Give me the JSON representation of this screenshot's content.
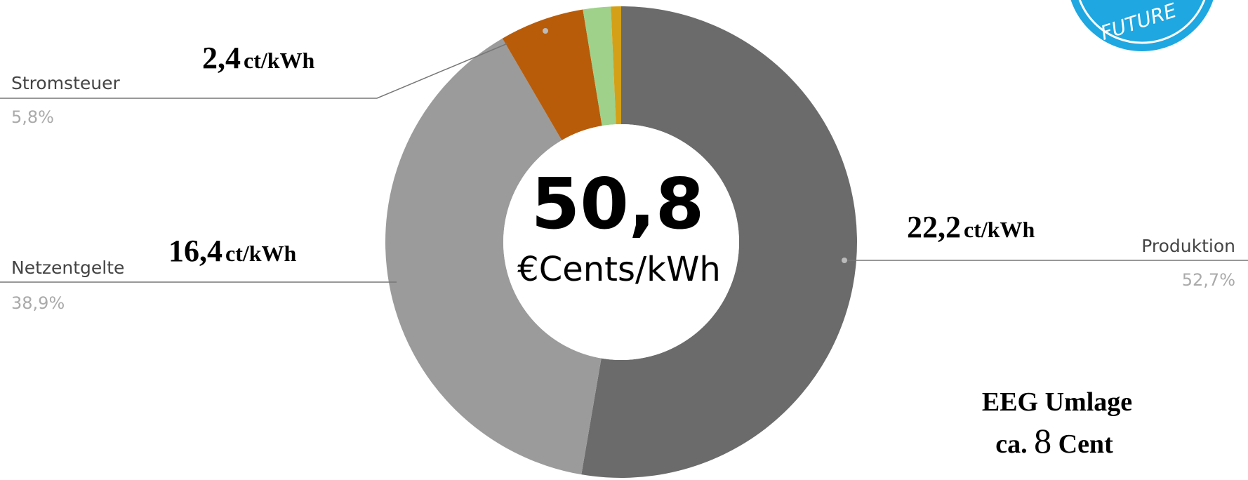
{
  "chart_data": {
    "type": "donut",
    "categories": [
      "Produktion",
      "Netzentgelte",
      "Stromsteuer",
      null,
      null
    ],
    "values": [
      52.7,
      38.9,
      5.8,
      1.9,
      0.7
    ],
    "value_labels": [
      "52,7%",
      "38,9%",
      "5,8%",
      null,
      null
    ],
    "colors": [
      "#6b6b6b",
      "#9b9b9b",
      "#b85c0a",
      "#9fd18a",
      "#d4a017"
    ],
    "center_value": "50,8",
    "center_unit": "€Cents/kWh",
    "annotations": [
      {
        "amount": "22,2",
        "unit": "ct/kWh"
      },
      {
        "amount": "16,4",
        "unit": "ct/kWh"
      },
      {
        "amount": "2,4",
        "unit": "ct/kWh"
      }
    ],
    "note": {
      "line1": "EEG Umlage",
      "prefix": "ca.",
      "amount": "8",
      "suffix": "Cent"
    },
    "logo": "FUTURE"
  }
}
